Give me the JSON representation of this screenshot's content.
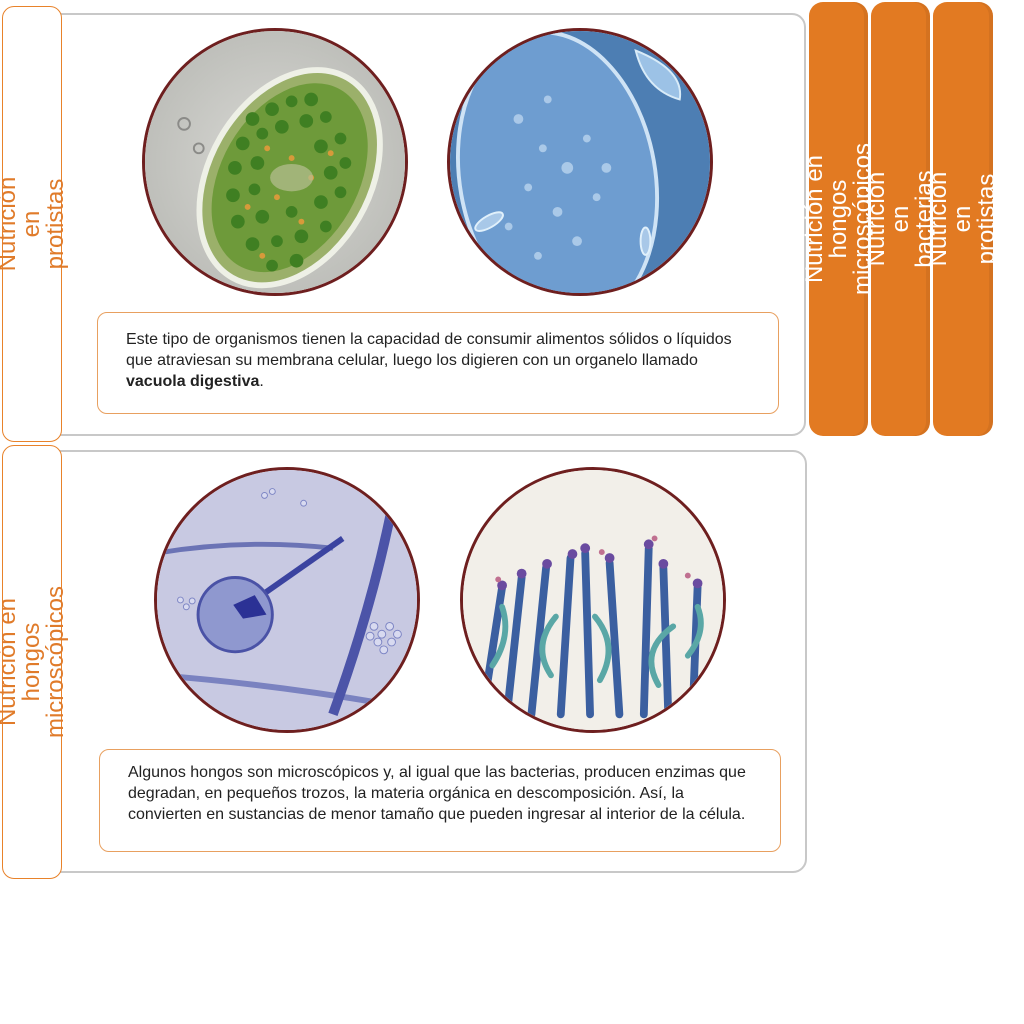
{
  "sections": [
    {
      "tab_label": "Nutrición en protistas",
      "text_before": "Este tipo de organismos tienen la capacidad de consumir alimentos sólidos o líquidos que atraviesan su membrana celular, luego los digieren con un organelo llamado ",
      "text_bold": "vacuola digestiva",
      "text_after": ".",
      "images": [
        "paramecium-green-micrograph",
        "paramecium-blue-micrograph"
      ]
    },
    {
      "tab_label": "Nutrición en hongos\nmicroscópicos",
      "text": "Algunos hongos son microscópicos y, al igual que las bacterias, producen enzimas que degradan, en pequeños trozos, la materia orgánica en descomposición. Así, la convierten en sustancias de menor tamaño que pueden ingresar al interior de la célula.",
      "images": [
        "mucor-sporangium-micrograph",
        "penicillium-hyphae-micrograph"
      ]
    }
  ],
  "side_tabs": [
    {
      "label": "Nutrición en hongos\nmicroscópicos"
    },
    {
      "label": "Nutrición en bacterias"
    },
    {
      "label": "Nutrición en protistas"
    }
  ],
  "colors": {
    "accent": "#e27a22",
    "circle_border": "#6e1f1f",
    "panel_border": "#c8c8c8"
  }
}
